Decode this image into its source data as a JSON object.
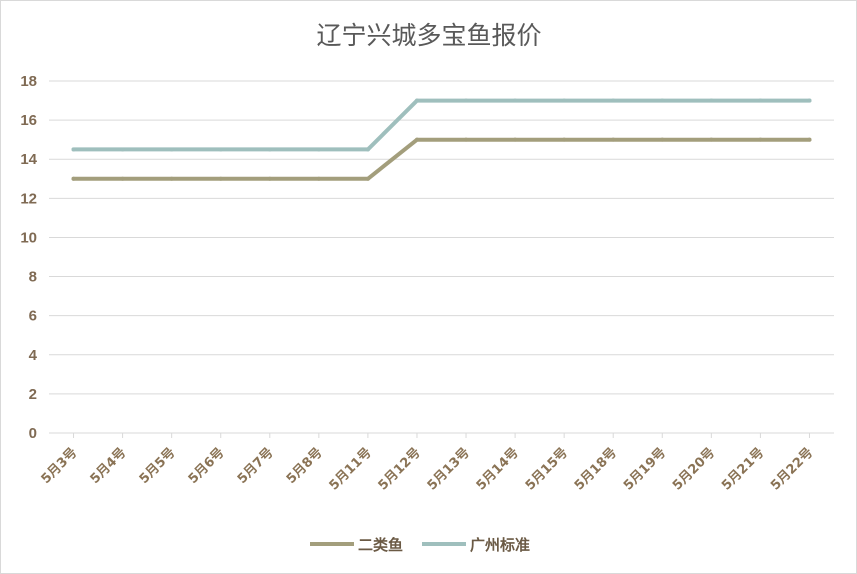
{
  "chart_data": {
    "type": "line",
    "title": "辽宁兴城多宝鱼报价",
    "xlabel": "",
    "ylabel": "",
    "categories": [
      "5月3号",
      "5月4号",
      "5月5号",
      "5月6号",
      "5月7号",
      "5月8号",
      "5月11号",
      "5月12号",
      "5月13号",
      "5月14号",
      "5月15号",
      "5月18号",
      "5月19号",
      "5月20号",
      "5月21号",
      "5月22号"
    ],
    "series": [
      {
        "name": "二类鱼",
        "color": "#a39e7c",
        "values": [
          13,
          13,
          13,
          13,
          13,
          13,
          13,
          15,
          15,
          15,
          15,
          15,
          15,
          15,
          15,
          15
        ]
      },
      {
        "name": "广州标准",
        "color": "#9fbfbd",
        "values": [
          14.5,
          14.5,
          14.5,
          14.5,
          14.5,
          14.5,
          14.5,
          17,
          17,
          17,
          17,
          17,
          17,
          17,
          17,
          17
        ]
      }
    ],
    "ylim": [
      0,
      18
    ],
    "yticks": [
      0,
      2,
      4,
      6,
      8,
      10,
      12,
      14,
      16,
      18
    ],
    "grid": true,
    "legend_position": "bottom"
  }
}
